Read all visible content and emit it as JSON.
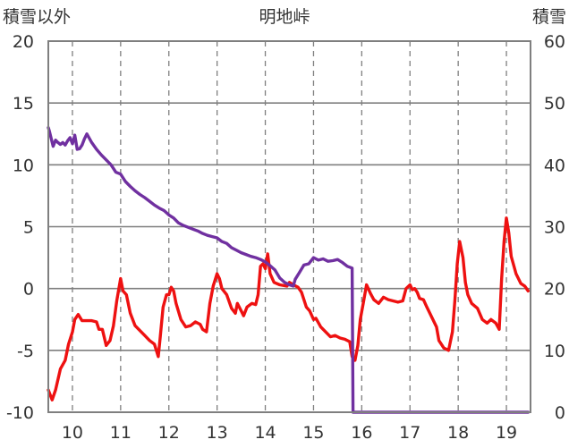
{
  "chart_data": {
    "type": "line",
    "title": "明地峠",
    "ylabel_left": "積雪以外",
    "ylabel_right": "積雪",
    "x_ticks": [
      "10",
      "11",
      "12",
      "13",
      "14",
      "15",
      "16",
      "17",
      "18",
      "19"
    ],
    "x_range": [
      9.5,
      19.5
    ],
    "y_left": {
      "range": [
        -10,
        20
      ],
      "ticks": [
        "20",
        "15",
        "10",
        "5",
        "0",
        "-5",
        "-10"
      ]
    },
    "y_right": {
      "range": [
        0,
        60
      ],
      "ticks": [
        "60",
        "50",
        "40",
        "30",
        "20",
        "10",
        "0"
      ]
    },
    "grid": true,
    "series": [
      {
        "axis": "left",
        "color": "#ee1111",
        "points": [
          [
            9.5,
            -8.2
          ],
          [
            9.58,
            -9.0
          ],
          [
            9.65,
            -8.2
          ],
          [
            9.75,
            -6.5
          ],
          [
            9.85,
            -5.8
          ],
          [
            9.92,
            -4.5
          ],
          [
            10.0,
            -3.5
          ],
          [
            10.05,
            -2.5
          ],
          [
            10.12,
            -2.1
          ],
          [
            10.2,
            -2.6
          ],
          [
            10.3,
            -2.6
          ],
          [
            10.4,
            -2.6
          ],
          [
            10.5,
            -2.7
          ],
          [
            10.55,
            -3.3
          ],
          [
            10.62,
            -3.3
          ],
          [
            10.7,
            -4.6
          ],
          [
            10.78,
            -4.2
          ],
          [
            10.85,
            -3.0
          ],
          [
            10.92,
            -1.0
          ],
          [
            11.0,
            0.8
          ],
          [
            11.05,
            -0.2
          ],
          [
            11.12,
            -0.5
          ],
          [
            11.2,
            -2.0
          ],
          [
            11.3,
            -3.0
          ],
          [
            11.4,
            -3.4
          ],
          [
            11.5,
            -3.8
          ],
          [
            11.6,
            -4.2
          ],
          [
            11.7,
            -4.5
          ],
          [
            11.78,
            -5.5
          ],
          [
            11.82,
            -4.0
          ],
          [
            11.88,
            -1.5
          ],
          [
            11.95,
            -0.5
          ],
          [
            12.0,
            -0.5
          ],
          [
            12.05,
            0.1
          ],
          [
            12.1,
            -0.2
          ],
          [
            12.15,
            -1.2
          ],
          [
            12.25,
            -2.5
          ],
          [
            12.35,
            -3.1
          ],
          [
            12.45,
            -3.0
          ],
          [
            12.55,
            -2.7
          ],
          [
            12.65,
            -2.9
          ],
          [
            12.7,
            -3.3
          ],
          [
            12.78,
            -3.5
          ],
          [
            12.85,
            -1.2
          ],
          [
            12.92,
            0.2
          ],
          [
            13.0,
            1.2
          ],
          [
            13.05,
            0.8
          ],
          [
            13.1,
            0.0
          ],
          [
            13.2,
            -0.5
          ],
          [
            13.3,
            -1.6
          ],
          [
            13.38,
            -2.0
          ],
          [
            13.42,
            -1.2
          ],
          [
            13.5,
            -1.8
          ],
          [
            13.55,
            -2.2
          ],
          [
            13.62,
            -1.5
          ],
          [
            13.72,
            -1.2
          ],
          [
            13.8,
            -1.3
          ],
          [
            13.85,
            -0.5
          ],
          [
            13.9,
            1.8
          ],
          [
            13.95,
            2.0
          ],
          [
            14.0,
            1.6
          ],
          [
            14.05,
            2.8
          ],
          [
            14.1,
            1.2
          ],
          [
            14.18,
            0.5
          ],
          [
            14.3,
            0.3
          ],
          [
            14.45,
            0.2
          ],
          [
            14.5,
            0.5
          ],
          [
            14.58,
            0.3
          ],
          [
            14.68,
            0.1
          ],
          [
            14.75,
            -0.3
          ],
          [
            14.85,
            -1.5
          ],
          [
            14.92,
            -1.8
          ],
          [
            15.0,
            -2.5
          ],
          [
            15.05,
            -2.4
          ],
          [
            15.15,
            -3.1
          ],
          [
            15.25,
            -3.5
          ],
          [
            15.35,
            -3.9
          ],
          [
            15.45,
            -3.8
          ],
          [
            15.55,
            -4.0
          ],
          [
            15.65,
            -4.1
          ],
          [
            15.75,
            -4.3
          ],
          [
            15.8,
            -5.5
          ],
          [
            15.86,
            -5.8
          ],
          [
            15.92,
            -4.6
          ],
          [
            15.97,
            -2.5
          ],
          [
            16.03,
            -1.2
          ],
          [
            16.1,
            0.3
          ],
          [
            16.18,
            -0.4
          ],
          [
            16.25,
            -0.9
          ],
          [
            16.35,
            -1.2
          ],
          [
            16.45,
            -0.7
          ],
          [
            16.55,
            -0.9
          ],
          [
            16.65,
            -1.0
          ],
          [
            16.75,
            -1.1
          ],
          [
            16.85,
            -1.0
          ],
          [
            16.92,
            0.0
          ],
          [
            17.0,
            0.3
          ],
          [
            17.05,
            -0.1
          ],
          [
            17.1,
            0.0
          ],
          [
            17.15,
            -0.3
          ],
          [
            17.2,
            -0.8
          ],
          [
            17.28,
            -0.9
          ],
          [
            17.35,
            -1.5
          ],
          [
            17.45,
            -2.3
          ],
          [
            17.55,
            -3.1
          ],
          [
            17.6,
            -4.2
          ],
          [
            17.7,
            -4.8
          ],
          [
            17.8,
            -5.0
          ],
          [
            17.88,
            -3.5
          ],
          [
            17.93,
            -1.0
          ],
          [
            17.98,
            2.0
          ],
          [
            18.03,
            3.8
          ],
          [
            18.1,
            2.5
          ],
          [
            18.15,
            0.5
          ],
          [
            18.2,
            -0.5
          ],
          [
            18.28,
            -1.2
          ],
          [
            18.4,
            -1.6
          ],
          [
            18.5,
            -2.5
          ],
          [
            18.6,
            -2.8
          ],
          [
            18.68,
            -2.5
          ],
          [
            18.78,
            -2.8
          ],
          [
            18.85,
            -3.3
          ],
          [
            18.9,
            0.8
          ],
          [
            18.95,
            3.8
          ],
          [
            19.0,
            5.7
          ],
          [
            19.05,
            4.5
          ],
          [
            19.1,
            2.6
          ],
          [
            19.2,
            1.2
          ],
          [
            19.3,
            0.4
          ],
          [
            19.38,
            0.2
          ],
          [
            19.45,
            -0.2
          ]
        ]
      },
      {
        "axis": "right",
        "color": "#7030a0",
        "points": [
          [
            9.5,
            46.0
          ],
          [
            9.52,
            45.5
          ],
          [
            9.6,
            43.0
          ],
          [
            9.65,
            44.0
          ],
          [
            9.7,
            43.6
          ],
          [
            9.75,
            43.3
          ],
          [
            9.8,
            43.6
          ],
          [
            9.85,
            43.2
          ],
          [
            9.9,
            43.9
          ],
          [
            9.95,
            44.4
          ],
          [
            10.0,
            43.4
          ],
          [
            10.05,
            44.8
          ],
          [
            10.1,
            42.5
          ],
          [
            10.15,
            42.6
          ],
          [
            10.2,
            43.2
          ],
          [
            10.25,
            44.2
          ],
          [
            10.3,
            45.0
          ],
          [
            10.35,
            44.3
          ],
          [
            10.4,
            43.6
          ],
          [
            10.5,
            42.5
          ],
          [
            10.6,
            41.6
          ],
          [
            10.7,
            40.8
          ],
          [
            10.8,
            40.0
          ],
          [
            10.9,
            38.8
          ],
          [
            11.0,
            38.5
          ],
          [
            11.1,
            37.3
          ],
          [
            11.2,
            36.5
          ],
          [
            11.3,
            35.8
          ],
          [
            11.4,
            35.2
          ],
          [
            11.5,
            34.7
          ],
          [
            11.6,
            34.1
          ],
          [
            11.7,
            33.5
          ],
          [
            11.8,
            33.0
          ],
          [
            11.9,
            32.6
          ],
          [
            12.0,
            31.9
          ],
          [
            12.1,
            31.4
          ],
          [
            12.2,
            30.6
          ],
          [
            12.3,
            30.2
          ],
          [
            12.4,
            29.9
          ],
          [
            12.5,
            29.6
          ],
          [
            12.6,
            29.3
          ],
          [
            12.7,
            28.9
          ],
          [
            12.8,
            28.6
          ],
          [
            12.9,
            28.4
          ],
          [
            13.0,
            28.2
          ],
          [
            13.1,
            27.6
          ],
          [
            13.2,
            27.3
          ],
          [
            13.3,
            26.6
          ],
          [
            13.4,
            26.2
          ],
          [
            13.5,
            25.8
          ],
          [
            13.6,
            25.5
          ],
          [
            13.7,
            25.2
          ],
          [
            13.8,
            25.0
          ],
          [
            13.9,
            24.7
          ],
          [
            14.0,
            24.3
          ],
          [
            14.1,
            23.7
          ],
          [
            14.2,
            23.0
          ],
          [
            14.3,
            21.7
          ],
          [
            14.4,
            21.0
          ],
          [
            14.5,
            20.6
          ],
          [
            14.58,
            20.4
          ],
          [
            14.62,
            21.5
          ],
          [
            14.7,
            22.5
          ],
          [
            14.8,
            23.8
          ],
          [
            14.9,
            24.0
          ],
          [
            15.0,
            25.0
          ],
          [
            15.1,
            24.6
          ],
          [
            15.2,
            24.8
          ],
          [
            15.3,
            24.4
          ],
          [
            15.4,
            24.5
          ],
          [
            15.5,
            24.7
          ],
          [
            15.6,
            24.2
          ],
          [
            15.7,
            23.6
          ],
          [
            15.8,
            23.3
          ],
          [
            15.82,
            0.0
          ],
          [
            16.0,
            0.0
          ],
          [
            17.0,
            0.0
          ],
          [
            18.0,
            0.0
          ],
          [
            19.0,
            0.0
          ],
          [
            19.45,
            0.0
          ]
        ]
      }
    ]
  }
}
